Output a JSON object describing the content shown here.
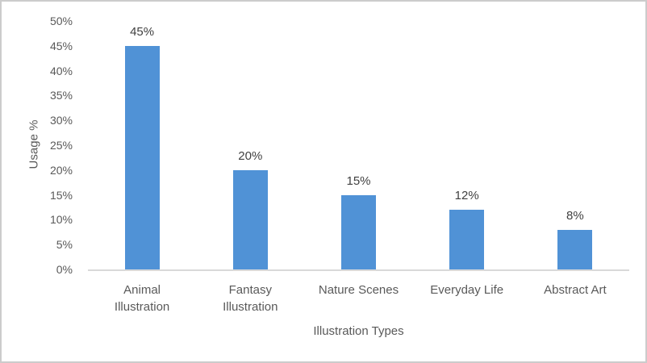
{
  "chart_data": {
    "type": "bar",
    "categories": [
      "Animal Illustration",
      "Fantasy Illustration",
      "Nature Scenes",
      "Everyday Life",
      "Abstract Art"
    ],
    "values": [
      45,
      20,
      15,
      12,
      8
    ],
    "data_labels": [
      "45%",
      "20%",
      "15%",
      "12%",
      "8%"
    ],
    "title": "",
    "xlabel": "Illustration Types",
    "ylabel": "Usage %",
    "ylim": [
      0,
      50
    ],
    "ytick_step": 5,
    "ytick_labels": [
      "0%",
      "5%",
      "10%",
      "15%",
      "20%",
      "25%",
      "30%",
      "35%",
      "40%",
      "45%",
      "50%"
    ],
    "grid": false,
    "legend": false
  },
  "colors": {
    "bar": "#5092D6",
    "axis_text": "#595959",
    "data_label": "#404040",
    "axis_line": "#D9D9D9",
    "frame_border": "#CCCCCC"
  }
}
